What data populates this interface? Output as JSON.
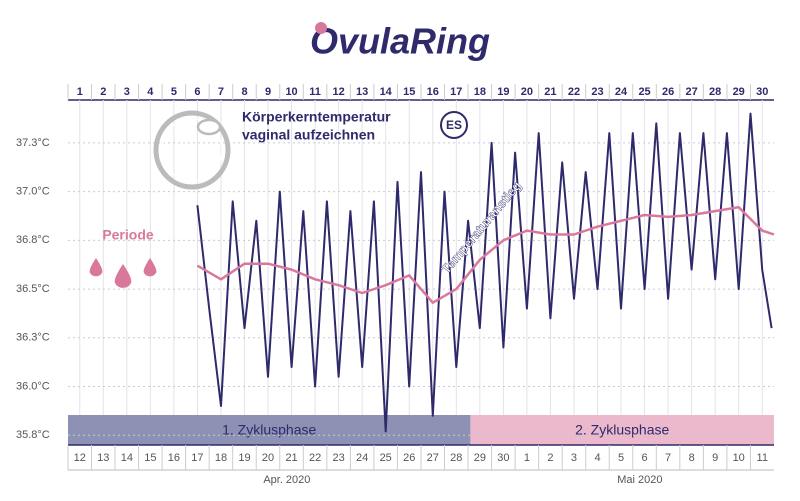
{
  "logo": "OvulaRing",
  "chart_data": {
    "type": "line",
    "annotations": {
      "line1": "Körperkerntemperatur",
      "line2": "vaginal aufzeichnen",
      "badge": "ES",
      "period": "Periode",
      "rise": "Temperaturanstieg"
    },
    "xlim": [
      0.5,
      30.5
    ],
    "xticks": [
      1,
      2,
      3,
      4,
      5,
      6,
      7,
      8,
      9,
      10,
      11,
      12,
      13,
      14,
      15,
      16,
      17,
      18,
      19,
      20,
      21,
      22,
      23,
      24,
      25,
      26,
      27,
      28,
      29,
      30
    ],
    "date_labels": [
      12,
      13,
      14,
      15,
      16,
      17,
      18,
      19,
      20,
      21,
      22,
      23,
      24,
      25,
      26,
      27,
      28,
      29,
      30,
      1,
      2,
      3,
      4,
      5,
      6,
      7,
      8,
      9,
      10,
      11
    ],
    "months": [
      "Apr. 2020",
      "Mai 2020"
    ],
    "ylim": [
      35.7,
      37.47
    ],
    "yticks": [
      {
        "value": 35.75,
        "label": "35.8°C"
      },
      {
        "value": 36.0,
        "label": "36.0°C"
      },
      {
        "value": 36.25,
        "label": "36.3°C"
      },
      {
        "value": 36.5,
        "label": "36.5°C"
      },
      {
        "value": 36.75,
        "label": "36.8°C"
      },
      {
        "value": 37.0,
        "label": "37.0°C"
      },
      {
        "value": 37.25,
        "label": "37.3°C"
      }
    ],
    "grid": true,
    "phases": [
      {
        "label": "1. Zyklusphase",
        "start": 0.5,
        "end": 17.6,
        "color": "#8d91b3"
      },
      {
        "label": "2. Zyklusphase",
        "start": 17.6,
        "end": 30.5,
        "color": "#ecb9cc"
      }
    ],
    "series": [
      {
        "color": "#2e2a6b",
        "x": [
          6,
          6.5,
          7,
          7.5,
          8,
          8.5,
          9,
          9.5,
          10,
          10.5,
          11,
          11.5,
          12,
          12.5,
          13,
          13.5,
          14,
          14.5,
          15,
          15.5,
          16,
          16.5,
          17,
          17.5,
          18,
          18.5,
          19,
          19.5,
          20,
          20.5,
          21,
          21.5,
          22,
          22.5,
          23,
          23.5,
          24,
          24.5,
          25,
          25.5,
          26,
          26.5,
          27,
          27.5,
          28,
          28.5,
          29,
          29.5,
          30,
          30.4
        ],
        "values": [
          36.93,
          36.4,
          35.9,
          36.95,
          36.3,
          36.85,
          36.05,
          37.0,
          36.1,
          36.9,
          36.0,
          36.95,
          36.05,
          36.9,
          36.1,
          36.95,
          35.77,
          37.05,
          36.0,
          37.1,
          35.85,
          37.0,
          36.1,
          36.85,
          36.3,
          37.25,
          36.2,
          37.2,
          36.4,
          37.3,
          36.35,
          37.15,
          36.45,
          37.1,
          36.5,
          37.3,
          36.4,
          37.3,
          36.5,
          37.35,
          36.45,
          37.3,
          36.6,
          37.3,
          36.55,
          37.3,
          36.5,
          37.4,
          36.6,
          36.3
        ]
      },
      {
        "color": "#d9789b",
        "x": [
          6,
          7,
          8,
          9,
          10,
          11,
          12,
          13,
          14,
          15,
          16,
          17,
          18,
          19,
          20,
          21,
          22,
          23,
          24,
          25,
          26,
          27,
          28,
          29,
          30,
          30.5
        ],
        "values": [
          36.62,
          36.55,
          36.63,
          36.63,
          36.6,
          36.55,
          36.52,
          36.48,
          36.52,
          36.57,
          36.43,
          36.5,
          36.65,
          36.75,
          36.8,
          36.78,
          36.78,
          36.82,
          36.85,
          36.88,
          36.87,
          36.88,
          36.9,
          36.92,
          36.8,
          36.78
        ]
      }
    ]
  }
}
